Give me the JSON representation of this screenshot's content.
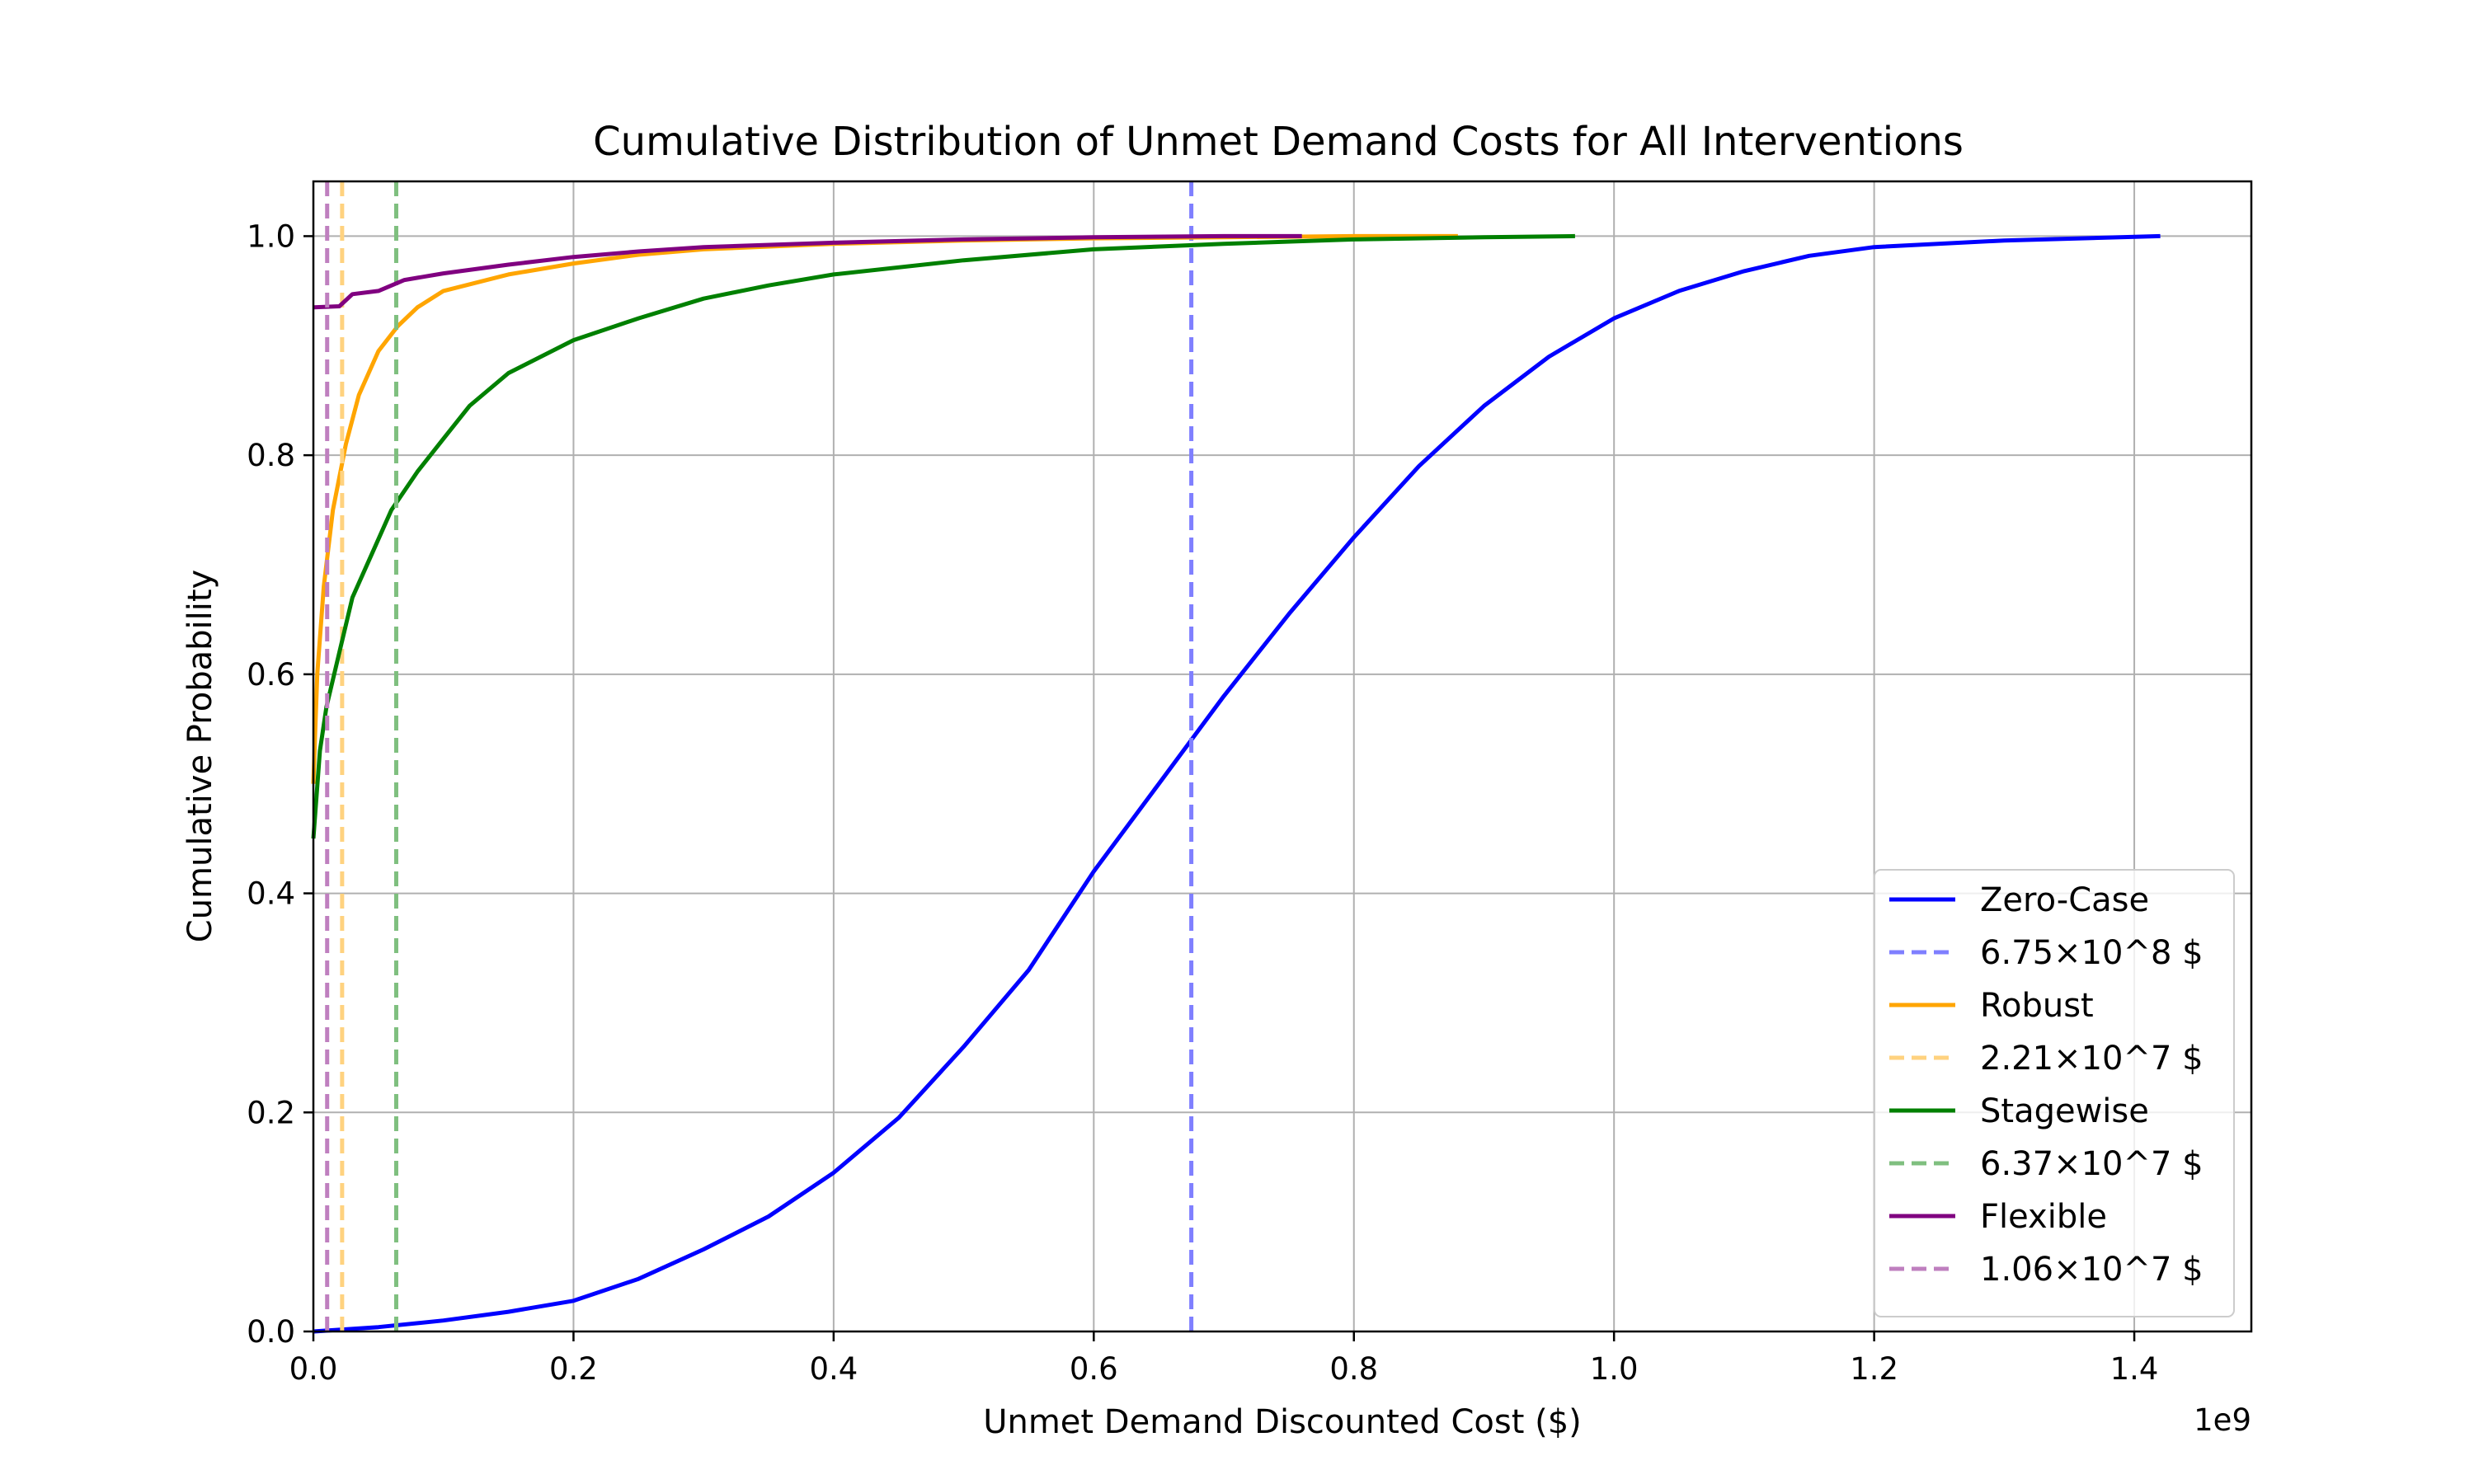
{
  "chart_data": {
    "type": "line",
    "title": "Cumulative Distribution of Unmet Demand Costs for All Interventions",
    "xlabel": "Unmet Demand Discounted Cost ($)",
    "ylabel": "Cumulative Probability",
    "x_offset_label": "1e9",
    "xlim": [
      0,
      1.49
    ],
    "ylim": [
      0,
      1.05
    ],
    "grid": true,
    "legend_position": "lower right",
    "x_ticks": [
      0.0,
      0.2,
      0.4,
      0.6,
      0.8,
      1.0,
      1.2,
      1.4
    ],
    "x_tick_labels": [
      "0.0",
      "0.2",
      "0.4",
      "0.6",
      "0.8",
      "1.0",
      "1.2",
      "1.4"
    ],
    "y_ticks": [
      0.0,
      0.2,
      0.4,
      0.6,
      0.8,
      1.0
    ],
    "y_tick_labels": [
      "0.0",
      "0.2",
      "0.4",
      "0.6",
      "0.8",
      "1.0"
    ],
    "series": [
      {
        "name": "Zero-Case",
        "color": "#0000ff",
        "x": [
          0,
          0.05,
          0.1,
          0.15,
          0.2,
          0.25,
          0.3,
          0.35,
          0.4,
          0.45,
          0.5,
          0.55,
          0.6,
          0.65,
          0.7,
          0.75,
          0.8,
          0.85,
          0.9,
          0.95,
          1.0,
          1.05,
          1.1,
          1.15,
          1.2,
          1.3,
          1.42
        ],
        "y": [
          0.0,
          0.004,
          0.01,
          0.018,
          0.028,
          0.048,
          0.075,
          0.105,
          0.145,
          0.195,
          0.26,
          0.33,
          0.42,
          0.5,
          0.58,
          0.655,
          0.725,
          0.79,
          0.845,
          0.89,
          0.925,
          0.95,
          0.968,
          0.982,
          0.99,
          0.996,
          1.0
        ]
      },
      {
        "name": "6.75×10^8 $",
        "color": "#7f7fff",
        "dashed": true,
        "vertical_x": 0.675
      },
      {
        "name": "Robust",
        "color": "#ffa500",
        "x": [
          0,
          0.003,
          0.008,
          0.015,
          0.025,
          0.035,
          0.05,
          0.065,
          0.08,
          0.1,
          0.15,
          0.2,
          0.25,
          0.3,
          0.4,
          0.5,
          0.6,
          0.7,
          0.8,
          0.88
        ],
        "y": [
          0.5,
          0.6,
          0.68,
          0.75,
          0.81,
          0.855,
          0.895,
          0.918,
          0.935,
          0.95,
          0.965,
          0.975,
          0.983,
          0.988,
          0.993,
          0.996,
          0.998,
          0.999,
          1.0,
          1.0
        ]
      },
      {
        "name": "2.21×10^7 $",
        "color": "#ffd27f",
        "dashed": true,
        "vertical_x": 0.0221
      },
      {
        "name": "Stagewise",
        "color": "#008000",
        "x": [
          0,
          0.005,
          0.01,
          0.02,
          0.03,
          0.045,
          0.06,
          0.08,
          0.1,
          0.12,
          0.15,
          0.2,
          0.25,
          0.3,
          0.35,
          0.4,
          0.5,
          0.6,
          0.7,
          0.8,
          0.9,
          0.97
        ],
        "y": [
          0.45,
          0.53,
          0.57,
          0.62,
          0.67,
          0.71,
          0.75,
          0.785,
          0.815,
          0.845,
          0.875,
          0.905,
          0.925,
          0.943,
          0.955,
          0.965,
          0.978,
          0.988,
          0.993,
          0.997,
          0.999,
          1.0
        ]
      },
      {
        "name": "6.37×10^7 $",
        "color": "#7fbf7f",
        "dashed": true,
        "vertical_x": 0.0637
      },
      {
        "name": "Flexible",
        "color": "#800080",
        "x": [
          0,
          0.02,
          0.03,
          0.05,
          0.07,
          0.1,
          0.15,
          0.2,
          0.25,
          0.3,
          0.4,
          0.5,
          0.6,
          0.7,
          0.76
        ],
        "y": [
          0.935,
          0.936,
          0.947,
          0.95,
          0.96,
          0.966,
          0.974,
          0.981,
          0.986,
          0.99,
          0.994,
          0.997,
          0.999,
          1.0,
          1.0
        ]
      },
      {
        "name": "1.06×10^7 $",
        "color": "#bf7fbf",
        "dashed": true,
        "vertical_x": 0.0106
      }
    ]
  }
}
